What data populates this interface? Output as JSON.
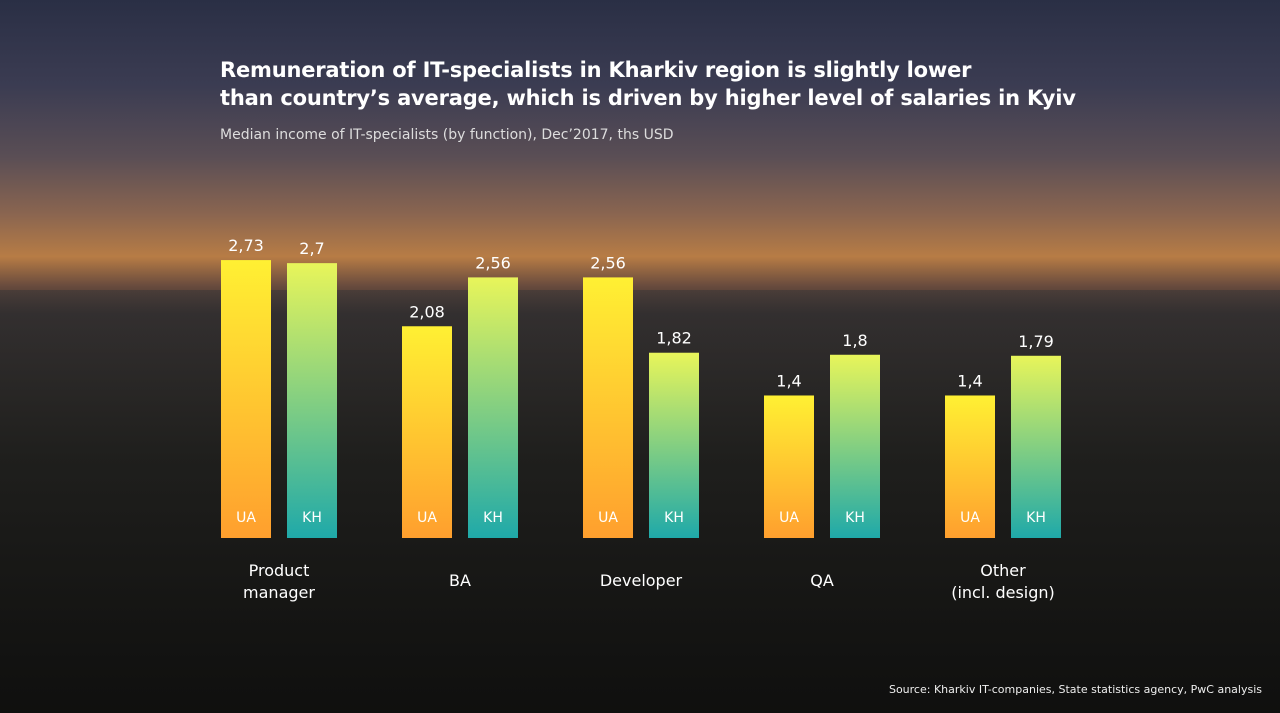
{
  "title_line1": "Remuneration of IT-specialists in Kharkiv region is slightly lower",
  "title_line2": "than country’s average, which is driven by higher level of salaries in Kyiv",
  "subtitle": "Median income of IT-specialists (by function), Dec’2017, ths USD",
  "source": "Source: Kharkiv IT-companies, State statistics agency, PwC analysis",
  "chart_data": {
    "type": "bar",
    "title": "Remuneration of IT-specialists in Kharkiv region is slightly lower than country’s average, which is driven by higher level of salaries in Kyiv",
    "subtitle": "Median income of IT-specialists (by function), Dec’2017, ths USD",
    "categories": [
      [
        "Product",
        "manager"
      ],
      [
        "BA"
      ],
      [
        "Developer"
      ],
      [
        "QA"
      ],
      [
        "Other",
        "(incl. design)"
      ]
    ],
    "series": [
      {
        "name": "UA",
        "values": [
          2.73,
          2.08,
          2.56,
          1.4,
          1.4
        ],
        "labels": [
          "2,73",
          "2,08",
          "2,56",
          "1,4",
          "1,4"
        ],
        "colors": [
          "#fff033",
          "#ff9f2e"
        ]
      },
      {
        "name": "KH",
        "values": [
          2.7,
          2.56,
          1.82,
          1.8,
          1.79
        ],
        "labels": [
          "2,7",
          "2,56",
          "1,82",
          "1,8",
          "1,79"
        ],
        "colors": [
          "#e8f55a",
          "#1fa9a9"
        ]
      }
    ],
    "ylim": [
      0,
      3
    ],
    "grid": false,
    "legend": "in-bar labels"
  }
}
